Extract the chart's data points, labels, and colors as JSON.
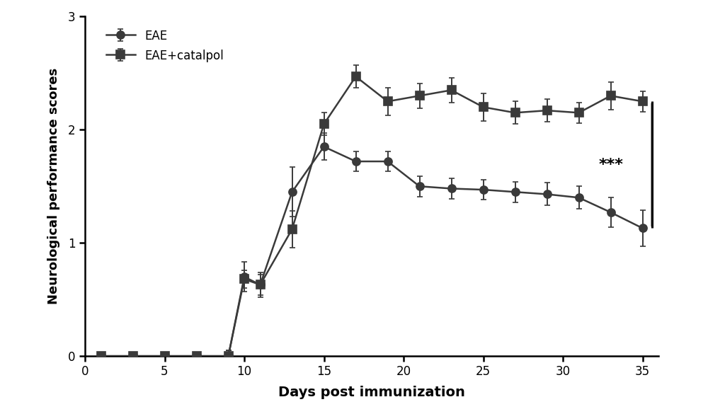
{
  "eae_x": [
    1,
    3,
    5,
    7,
    9,
    10,
    11,
    13,
    15,
    17,
    19,
    21,
    23,
    25,
    27,
    29,
    31,
    33,
    35
  ],
  "eae_y": [
    0.0,
    0.0,
    0.0,
    0.0,
    0.0,
    0.7,
    0.63,
    1.45,
    1.85,
    1.72,
    1.72,
    1.5,
    1.48,
    1.47,
    1.45,
    1.43,
    1.4,
    1.27,
    1.13
  ],
  "eae_yerr": [
    0.02,
    0.02,
    0.02,
    0.02,
    0.05,
    0.13,
    0.11,
    0.22,
    0.12,
    0.09,
    0.09,
    0.09,
    0.09,
    0.09,
    0.09,
    0.1,
    0.1,
    0.13,
    0.16
  ],
  "cat_x": [
    1,
    3,
    5,
    7,
    9,
    10,
    11,
    13,
    15,
    17,
    19,
    21,
    23,
    25,
    27,
    29,
    31,
    33,
    35
  ],
  "cat_y": [
    0.0,
    0.0,
    0.0,
    0.0,
    0.0,
    0.68,
    0.63,
    1.12,
    2.05,
    2.47,
    2.25,
    2.3,
    2.35,
    2.2,
    2.15,
    2.17,
    2.15,
    2.3,
    2.25
  ],
  "cat_yerr": [
    0.02,
    0.02,
    0.02,
    0.02,
    0.05,
    0.08,
    0.09,
    0.16,
    0.1,
    0.1,
    0.12,
    0.11,
    0.11,
    0.12,
    0.1,
    0.1,
    0.09,
    0.12,
    0.09
  ],
  "eae_color": "#3a3a3a",
  "cat_color": "#3a3a3a",
  "eae_marker": "o",
  "cat_marker": "s",
  "xlabel": "Days post immunization",
  "ylabel": "Neurological performance scores",
  "xlim": [
    0,
    36
  ],
  "ylim": [
    0,
    3.0
  ],
  "xticks": [
    0,
    5,
    10,
    15,
    20,
    25,
    30,
    35
  ],
  "yticks": [
    0,
    1,
    2,
    3
  ],
  "legend_eae": "EAE",
  "legend_cat": "EAE+catalpol",
  "significance_text": "***",
  "background_color": "#ffffff",
  "marker_size": 8,
  "linewidth": 1.8,
  "capsize": 3,
  "elinewidth": 1.4,
  "markeredgewidth": 1.2
}
